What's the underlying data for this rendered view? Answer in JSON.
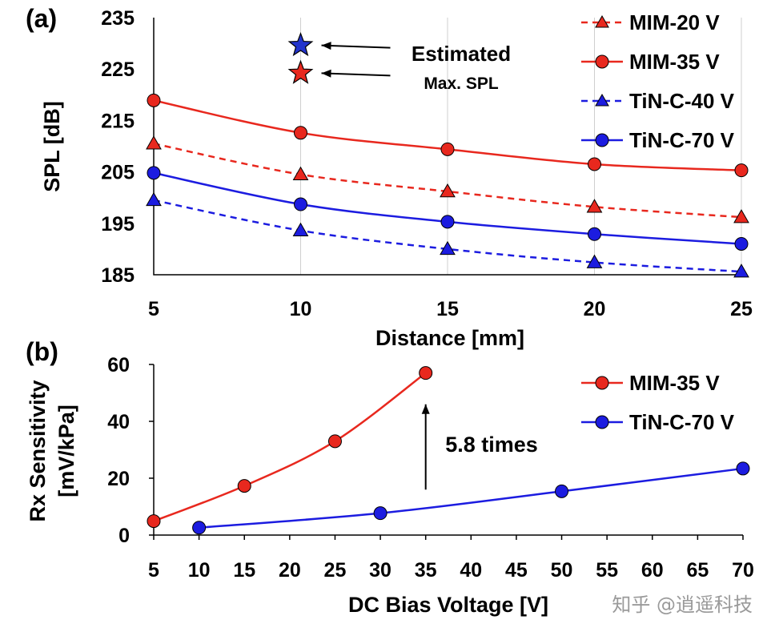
{
  "colors": {
    "red": "#e8281e",
    "blue": "#1c1ce0",
    "star_blue": "#2233cc",
    "star_red": "#e8281e"
  },
  "watermark": "知乎 @逍遥科技",
  "chart_data": [
    {
      "panel_label": "(a)",
      "type": "line",
      "xlabel": "Distance [mm]",
      "ylabel": "SPL [dB]",
      "xlim": [
        5,
        25
      ],
      "ylim": [
        185,
        235
      ],
      "xticks": [
        "5",
        "10",
        "15",
        "20",
        "25"
      ],
      "yticks": [
        "185",
        "195",
        "205",
        "215",
        "225",
        "235"
      ],
      "grid": "vertical",
      "legend_position": "top-right",
      "x": [
        5,
        10,
        15,
        20,
        25
      ],
      "series": [
        {
          "name": "MIM-20 V",
          "color": "#e8281e",
          "marker": "triangle",
          "dashed": true,
          "values": [
            210.5,
            204.5,
            201.2,
            198.2,
            196.2
          ]
        },
        {
          "name": "MIM-35 V",
          "color": "#e8281e",
          "marker": "circle",
          "dashed": false,
          "values": [
            218.9,
            212.6,
            209.4,
            206.5,
            205.3
          ]
        },
        {
          "name": "TiN-C-40 V",
          "color": "#1c1ce0",
          "marker": "triangle",
          "dashed": true,
          "values": [
            199.5,
            193.6,
            190.0,
            187.4,
            185.6
          ]
        },
        {
          "name": "TiN-C-70 V",
          "color": "#1c1ce0",
          "marker": "circle",
          "dashed": false,
          "values": [
            204.8,
            198.7,
            195.3,
            192.9,
            191.0
          ]
        }
      ],
      "annotation": {
        "line1": "Estimated",
        "line2": "Max. SPL",
        "stars": [
          {
            "color": "#2233cc",
            "x": 10,
            "y": 229.6
          },
          {
            "color": "#e8281e",
            "x": 10,
            "y": 224.2
          }
        ]
      }
    },
    {
      "panel_label": "(b)",
      "type": "line",
      "xlabel": "DC Bias Voltage [V]",
      "ylabel_line1": "Rx Sensitivity",
      "ylabel_line2": "[mV/kPa]",
      "xlim": [
        5,
        70
      ],
      "ylim": [
        0,
        60
      ],
      "xticks": [
        "5",
        "10",
        "15",
        "20",
        "25",
        "30",
        "35",
        "40",
        "45",
        "50",
        "55",
        "60",
        "65",
        "70"
      ],
      "yticks": [
        "0",
        "20",
        "40",
        "60"
      ],
      "legend_position": "top-right",
      "series": [
        {
          "name": "MIM-35 V",
          "color": "#e8281e",
          "marker": "circle",
          "x": [
            5,
            15,
            25,
            35
          ],
          "values": [
            4.9,
            17.3,
            33.0,
            57.0
          ]
        },
        {
          "name": "TiN-C-70 V",
          "color": "#1c1ce0",
          "marker": "circle",
          "x": [
            10,
            30,
            50,
            70
          ],
          "values": [
            2.6,
            7.7,
            15.4,
            23.4
          ]
        }
      ],
      "annotation": {
        "text": "5.8 times",
        "arrow_x": 35,
        "arrow_from": 16,
        "arrow_to": 46
      }
    }
  ]
}
